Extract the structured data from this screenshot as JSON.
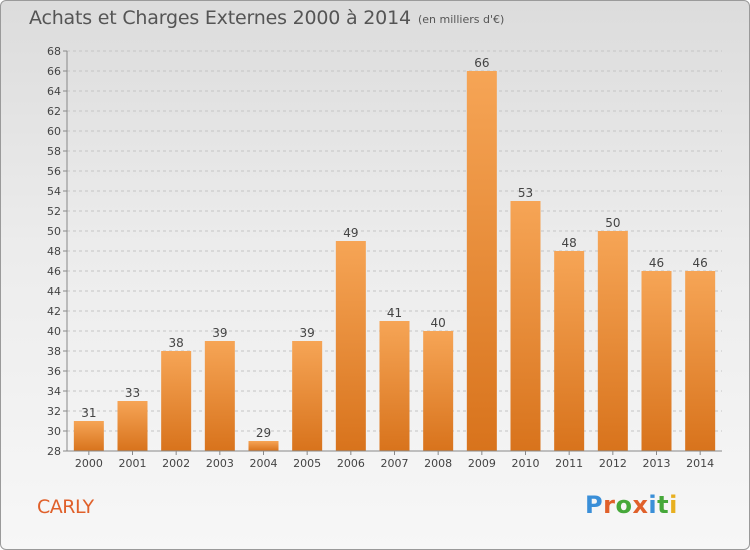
{
  "header": {
    "title": "Achats et Charges Externes 2000 à 2014",
    "subtitle": "(en milliers d'€)"
  },
  "footer": {
    "place": "CARLY",
    "logo": "Proxiti",
    "logo_colors": [
      "#3a8fd8",
      "#e0602a",
      "#46a83a",
      "#e0602a",
      "#3a8fd8",
      "#46a83a",
      "#e8b020"
    ]
  },
  "chart_data": {
    "type": "bar",
    "title": "Achats et Charges Externes 2000 à 2014",
    "subtitle": "(en milliers d'€)",
    "xlabel": "",
    "ylabel": "",
    "categories": [
      "2000",
      "2001",
      "2002",
      "2003",
      "2004",
      "2005",
      "2006",
      "2007",
      "2008",
      "2009",
      "2010",
      "2011",
      "2012",
      "2013",
      "2014"
    ],
    "values": [
      31,
      33,
      38,
      39,
      29,
      39,
      49,
      41,
      40,
      66,
      53,
      48,
      50,
      46,
      46
    ],
    "ylim": [
      28,
      68
    ],
    "ytick_step": 2,
    "grid": "horizontal dashed",
    "bar_color": "#f0923a"
  }
}
